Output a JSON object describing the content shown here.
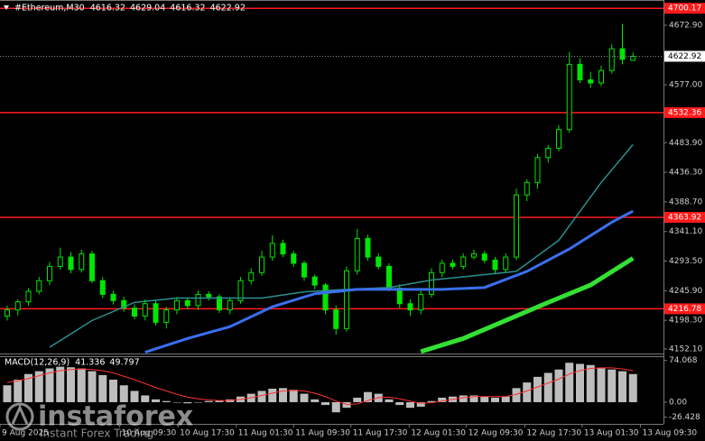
{
  "chart_data": [
    {
      "type": "candlestick",
      "title": "#Ethereum,M30",
      "header_values": [
        4616.32,
        4629.04,
        4616.32,
        4622.92
      ],
      "color": "#00e600",
      "open": [
        4205,
        4215,
        4228,
        4245,
        4262,
        4285,
        4300,
        4280,
        4305,
        4262,
        4240,
        4230,
        4218,
        4205,
        4225,
        4195,
        4215,
        4230,
        4222,
        4240,
        4236,
        4215,
        4230,
        4262,
        4275,
        4300,
        4322,
        4305,
        4290,
        4268,
        4255,
        4215,
        4185,
        4278,
        4330,
        4300,
        4285,
        4250,
        4225,
        4215,
        4240,
        4275,
        4290,
        4285,
        4300,
        4305,
        4295,
        4280,
        4300,
        4400,
        4420,
        4460,
        4475,
        4505,
        4610,
        4585,
        4580,
        4600,
        4635,
        4616.32
      ],
      "high": [
        4222,
        4232,
        4250,
        4268,
        4292,
        4315,
        4308,
        4312,
        4310,
        4268,
        4246,
        4236,
        4224,
        4232,
        4230,
        4220,
        4236,
        4234,
        4246,
        4245,
        4240,
        4236,
        4268,
        4282,
        4310,
        4335,
        4328,
        4310,
        4294,
        4272,
        4258,
        4222,
        4285,
        4345,
        4336,
        4306,
        4290,
        4256,
        4232,
        4246,
        4282,
        4296,
        4296,
        4306,
        4312,
        4310,
        4300,
        4306,
        4410,
        4425,
        4466,
        4480,
        4512,
        4630,
        4620,
        4598,
        4608,
        4642,
        4675,
        4629.04
      ],
      "low": [
        4198,
        4206,
        4222,
        4240,
        4255,
        4280,
        4274,
        4275,
        4258,
        4234,
        4224,
        4212,
        4200,
        4198,
        4190,
        4185,
        4208,
        4216,
        4215,
        4230,
        4210,
        4208,
        4225,
        4256,
        4270,
        4294,
        4300,
        4284,
        4262,
        4248,
        4208,
        4175,
        4180,
        4272,
        4294,
        4280,
        4245,
        4218,
        4205,
        4208,
        4235,
        4268,
        4280,
        4280,
        4296,
        4290,
        4272,
        4275,
        4295,
        4390,
        4410,
        4452,
        4470,
        4500,
        4580,
        4572,
        4575,
        4595,
        4610,
        4616.32
      ],
      "close": [
        4215,
        4228,
        4245,
        4262,
        4285,
        4300,
        4280,
        4305,
        4262,
        4240,
        4230,
        4218,
        4205,
        4225,
        4195,
        4215,
        4230,
        4222,
        4240,
        4236,
        4215,
        4230,
        4262,
        4275,
        4300,
        4322,
        4305,
        4290,
        4268,
        4255,
        4215,
        4185,
        4278,
        4330,
        4300,
        4285,
        4250,
        4225,
        4215,
        4240,
        4275,
        4290,
        4285,
        4300,
        4305,
        4295,
        4280,
        4300,
        4400,
        4420,
        4460,
        4475,
        4505,
        4610,
        4585,
        4580,
        4600,
        4635,
        4618,
        4622.92
      ],
      "moving_averages": [
        {
          "color": "#2a8f8f",
          "x": [
            4,
            8,
            12,
            16,
            20,
            24,
            28,
            32,
            36,
            40,
            44,
            48,
            52,
            56,
            59
          ],
          "values": [
            4155,
            4198,
            4227,
            4234,
            4234,
            4234,
            4244,
            4248,
            4251,
            4263,
            4270,
            4277,
            4327,
            4420,
            4481
          ]
        },
        {
          "color": "#3b6ff0",
          "x": [
            13,
            17,
            21,
            25,
            29,
            33,
            37,
            41,
            45,
            49,
            53,
            57,
            59
          ],
          "values": [
            4147,
            4169,
            4188,
            4220,
            4241,
            4248,
            4248,
            4248,
            4251,
            4277,
            4313,
            4356,
            4374
          ]
        },
        {
          "color": "#33e033",
          "x": [
            39,
            43,
            47,
            51,
            55,
            59
          ],
          "values": [
            4148,
            4169,
            4198,
            4227,
            4255,
            4298
          ]
        }
      ],
      "levels": [
        4700.17,
        4532.36,
        4363.92,
        4216.78
      ],
      "level_color": "#ff1a1a",
      "ylim": [
        4140.5,
        4713.5
      ],
      "yticks": [
        {
          "value": 4672.9,
          "label": "4672.90"
        },
        {
          "value": 4577,
          "label": "4577.00"
        },
        {
          "value": 4483.9,
          "label": "4483.90"
        },
        {
          "value": 4436.3,
          "label": "4436.30"
        },
        {
          "value": 4388.7,
          "label": "4388.70"
        },
        {
          "value": 4341.1,
          "label": "4341.10"
        },
        {
          "value": 4293.5,
          "label": "4293.50"
        },
        {
          "value": 4245.9,
          "label": "4245.90"
        },
        {
          "value": 4198.3,
          "label": "4198.30"
        },
        {
          "value": 4152.1,
          "label": "4152.10"
        }
      ],
      "xticks": [
        {
          "value": -0.7,
          "label": "9 Aug 2025"
        },
        {
          "value": 10.6,
          "label": "10 Aug 09:30"
        },
        {
          "value": 16.1,
          "label": "10 Aug 17:30"
        },
        {
          "value": 21.6,
          "label": "11 Aug 01:30"
        },
        {
          "value": 27.0,
          "label": "11 Aug 09:30"
        },
        {
          "value": 32.4,
          "label": "11 Aug 17:30"
        },
        {
          "value": 37.9,
          "label": "12 Aug 01:30"
        },
        {
          "value": 43.3,
          "label": "12 Aug 09:30"
        },
        {
          "value": 48.8,
          "label": "12 Aug 17:30"
        },
        {
          "value": 54.2,
          "label": "13 Aug 01:30"
        },
        {
          "value": 59.7,
          "label": "13 Aug 09:30"
        }
      ]
    },
    {
      "type": "bar",
      "title": "MACD(12,26,9)",
      "header_values": [
        41.336,
        49.797
      ],
      "color": "#bdbdbd",
      "values": [
        30,
        40,
        50,
        55,
        60,
        63,
        62,
        60,
        55,
        48,
        40,
        30,
        20,
        12,
        5,
        2,
        0,
        -2,
        0,
        2,
        3,
        5,
        10,
        15,
        20,
        24,
        25,
        22,
        15,
        5,
        -5,
        -18,
        -10,
        8,
        18,
        15,
        5,
        -5,
        -10,
        -8,
        2,
        8,
        10,
        12,
        12,
        10,
        8,
        10,
        25,
        35,
        45,
        52,
        58,
        70,
        68,
        66,
        60,
        58,
        55,
        50
      ],
      "signal": {
        "color": "#ff3030",
        "values": [
          35,
          38,
          42,
          47,
          52,
          56,
          58,
          59,
          58,
          56,
          52,
          46,
          40,
          33,
          26,
          20,
          14,
          9,
          6,
          4,
          3,
          3,
          5,
          8,
          12,
          16,
          20,
          21,
          20,
          16,
          10,
          2,
          -4,
          -3,
          3,
          8,
          9,
          6,
          2,
          -2,
          -1,
          2,
          5,
          8,
          10,
          10,
          10,
          10,
          14,
          20,
          27,
          34,
          41,
          50,
          56,
          60,
          61,
          61,
          59,
          56
        ]
      },
      "ylim": [
        -38.5,
        81.6
      ],
      "yticks": [
        74.068,
        {
          "value": 0,
          "label": "0.00"
        },
        -26.428
      ]
    }
  ],
  "watermark": {
    "brand": "instaforex",
    "tagline": "Instant Forex Trading"
  }
}
